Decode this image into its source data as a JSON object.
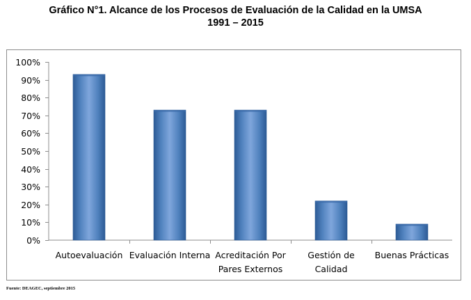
{
  "title_line1": "Gráfico N°1. Alcance de los Procesos de Evaluación de la Calidad en la UMSA",
  "title_line2": "1991 – 2015",
  "source": "Fuente: DEAGEC, septiembre 2015",
  "colors": {
    "bar": "#4f81bd",
    "bar_dark": "#2c5a95",
    "bar_light": "#7fa6dc",
    "grid": "#8c8c8c"
  },
  "chart_data": {
    "type": "bar",
    "categories": [
      [
        "Autoevaluación"
      ],
      [
        "Evaluación Interna"
      ],
      [
        "Acreditación Por",
        "Pares Externos"
      ],
      [
        "Gestión de",
        "Calidad"
      ],
      [
        "Buenas Prácticas"
      ]
    ],
    "values": [
      93,
      73,
      73,
      22,
      9
    ],
    "ylim": [
      0,
      100
    ],
    "yticks": [
      0,
      10,
      20,
      30,
      40,
      50,
      60,
      70,
      80,
      90,
      100
    ],
    "ytick_labels": [
      "0%",
      "10%",
      "20%",
      "30%",
      "40%",
      "50%",
      "60%",
      "70%",
      "80%",
      "90%",
      "100%"
    ],
    "grid": false,
    "legend": "none"
  }
}
